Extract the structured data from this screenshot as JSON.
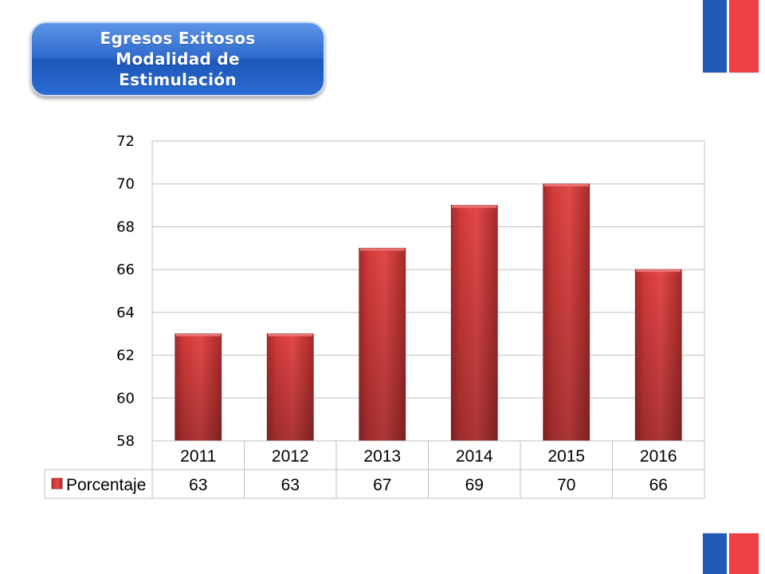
{
  "title": {
    "line1": "Egresos Exitosos",
    "line2": "Modalidad de",
    "line3": "Estimulación"
  },
  "colors": {
    "bar": "#d23a3a",
    "title_bg": "#2f6bcc",
    "flag_blue": "#1f5bb7",
    "flag_red": "#ec4146"
  },
  "chart_data": {
    "type": "bar",
    "categories": [
      "2011",
      "2012",
      "2013",
      "2014",
      "2015",
      "2016"
    ],
    "series": [
      {
        "name": "Porcentaje",
        "values": [
          63,
          63,
          67,
          69,
          70,
          66
        ]
      }
    ],
    "ylim": [
      58,
      72
    ],
    "yticks": [
      58,
      60,
      62,
      64,
      66,
      68,
      70,
      72
    ],
    "grid": true,
    "legend": "data-table",
    "data_table": true
  }
}
